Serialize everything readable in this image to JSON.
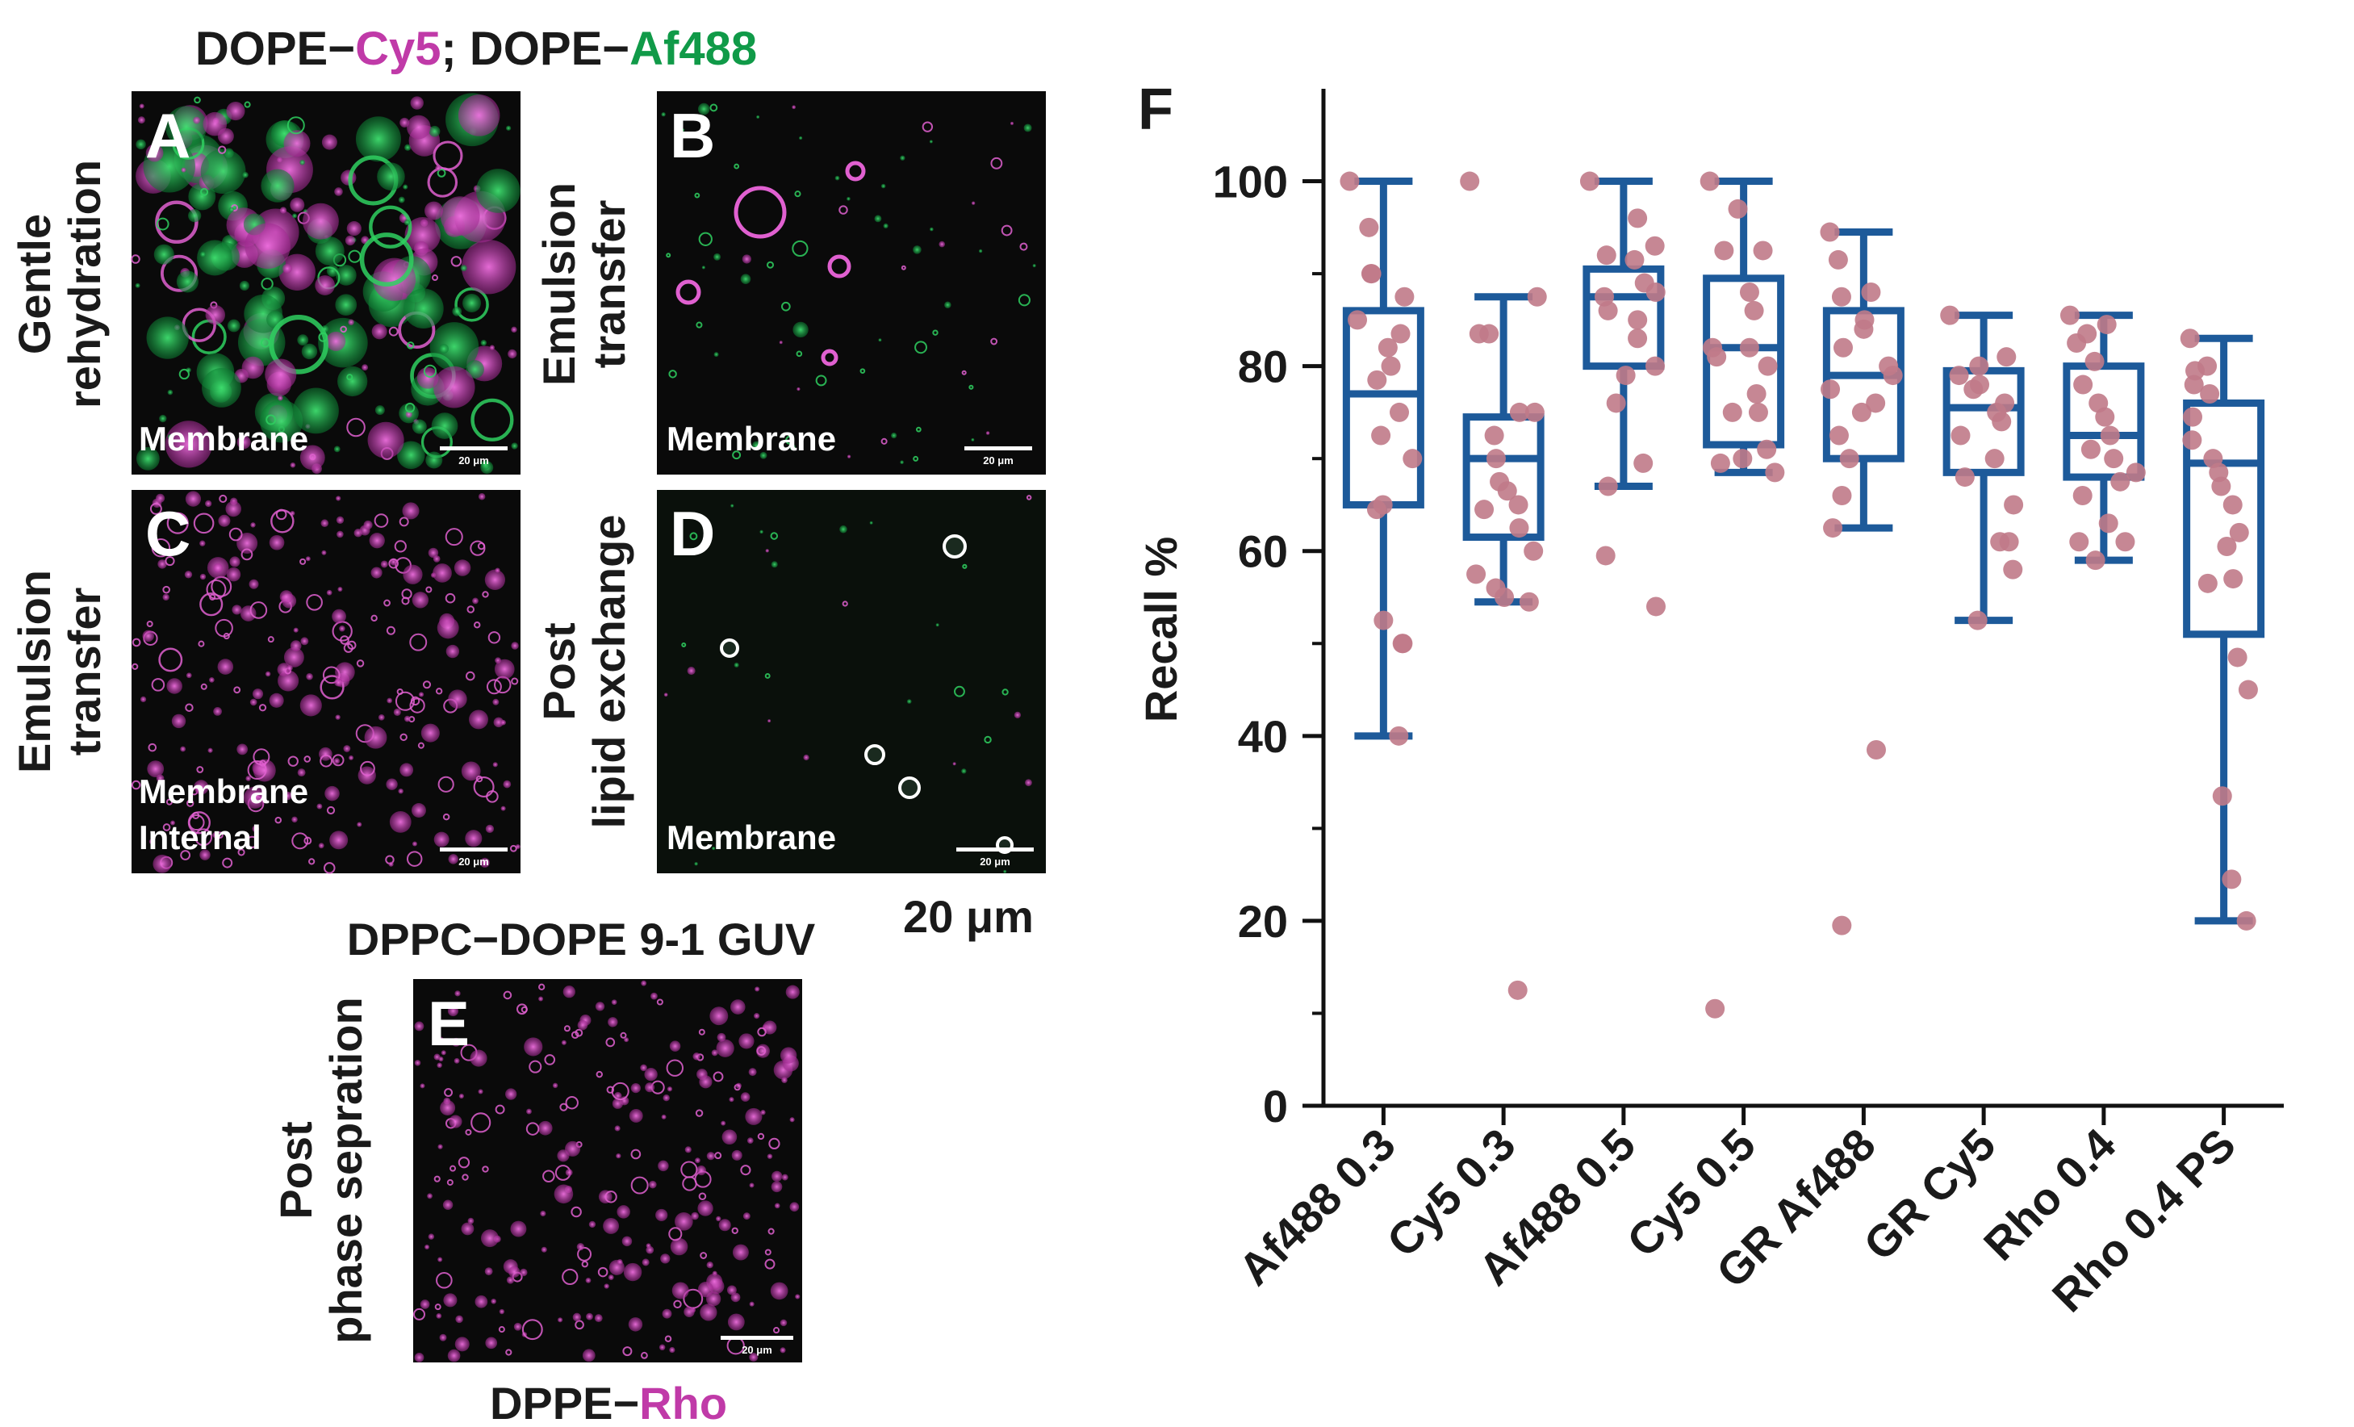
{
  "figure": {
    "title_left": {
      "prefix_1": "DOPE−",
      "dye_1": "Cy5",
      "sep": "; ",
      "prefix_2": "DOPE−",
      "dye_2": "Af488"
    },
    "panels": [
      {
        "letter": "A",
        "row_label": [
          "Gentle",
          "rehydration"
        ],
        "overlay": [
          "Membrane"
        ],
        "scalebar": "20 μm"
      },
      {
        "letter": "B",
        "row_label": [
          "Emulsion",
          "transfer"
        ],
        "overlay": [
          "Membrane"
        ],
        "scalebar": "20 μm"
      },
      {
        "letter": "C",
        "row_label": [
          "Emulsion",
          "transfer"
        ],
        "overlay": [
          "Membrane",
          "Internal"
        ],
        "scalebar": "20 μm"
      },
      {
        "letter": "D",
        "row_label": [
          "Post",
          "lipid exchange"
        ],
        "overlay": [
          "Membrane"
        ],
        "scalebar": "20 μm"
      },
      {
        "letter": "E",
        "row_label": [
          "Post",
          "phase sepration"
        ],
        "overlay": [],
        "scalebar": "20 μm"
      }
    ],
    "scale_caption": "20 μm",
    "guv_title": "DPPC−DOPE 9-1 GUV",
    "bottom_label": {
      "prefix": "DPPE−",
      "dye": "Rho"
    },
    "colors": {
      "magenta": "#c03aa8",
      "green": "#109a48",
      "box": "#1d5a9a",
      "points": "#c07a88"
    }
  },
  "chart_data": {
    "type": "box",
    "panel_letter": "F",
    "title": "",
    "xlabel": "",
    "ylabel": "Recall %",
    "ylim": [
      0,
      110
    ],
    "yticks": [
      0,
      20,
      40,
      60,
      80,
      100
    ],
    "categories": [
      "Af488 0.3",
      "Cy5 0.3",
      "Af488 0.5",
      "Cy5 0.5",
      "GR Af488",
      "GR Cy5",
      "Rho 0.4",
      "Rho 0.4 PS"
    ],
    "boxes": [
      {
        "min": 40,
        "q1": 65,
        "median": 77,
        "q3": 86,
        "max": 100
      },
      {
        "min": 54.5,
        "q1": 61.5,
        "median": 70,
        "q3": 74.5,
        "max": 87.5
      },
      {
        "min": 67,
        "q1": 80,
        "median": 87.5,
        "q3": 90.5,
        "max": 100
      },
      {
        "min": 68.5,
        "q1": 71.5,
        "median": 82,
        "q3": 89.5,
        "max": 100
      },
      {
        "min": 62.5,
        "q1": 70,
        "median": 79,
        "q3": 86,
        "max": 94.5
      },
      {
        "min": 52.5,
        "q1": 68.5,
        "median": 75.5,
        "q3": 79.5,
        "max": 85.5
      },
      {
        "min": 59,
        "q1": 68,
        "median": 72.5,
        "q3": 80,
        "max": 85.5
      },
      {
        "min": 20,
        "q1": 51,
        "median": 69.5,
        "q3": 76,
        "max": 83
      }
    ],
    "points": [
      [
        100,
        95,
        90,
        90,
        87.5,
        85,
        83.5,
        82,
        80,
        78.5,
        75,
        72.5,
        70,
        65,
        64.5,
        52.5,
        50,
        50,
        40
      ],
      [
        100,
        87.5,
        83.5,
        83.5,
        75,
        75,
        72.5,
        70,
        67.5,
        66.5,
        65,
        64.5,
        62.5,
        60,
        57.5,
        56,
        55,
        54.5,
        12.5
      ],
      [
        100,
        96,
        93,
        92,
        91.5,
        89,
        88,
        87.5,
        86,
        85,
        83,
        80,
        79,
        76,
        69.5,
        67,
        59.5,
        54
      ],
      [
        100,
        97,
        92.5,
        92.5,
        88,
        86,
        82,
        82,
        81,
        80,
        77,
        75,
        75,
        71,
        70,
        69.5,
        68.5,
        10.5
      ],
      [
        94.5,
        91.5,
        88,
        87.5,
        85,
        84,
        82,
        80,
        79,
        77.5,
        76,
        75,
        72.5,
        70,
        66,
        62.5,
        38.5,
        19.5
      ],
      [
        85.5,
        81,
        80,
        79,
        78,
        77.5,
        76,
        75,
        74,
        72.5,
        70,
        68,
        65,
        61,
        61,
        58,
        52.5
      ],
      [
        85.5,
        84.5,
        83.5,
        82.5,
        80.5,
        78,
        76,
        74.5,
        72.5,
        71,
        70,
        68.5,
        67.5,
        66,
        63,
        61,
        61,
        59
      ],
      [
        83,
        80,
        79.5,
        78,
        77,
        74.5,
        72,
        70,
        68.5,
        67,
        65,
        62,
        60.5,
        57,
        56.5,
        48.5,
        45,
        33.5,
        24.5,
        20
      ]
    ]
  }
}
